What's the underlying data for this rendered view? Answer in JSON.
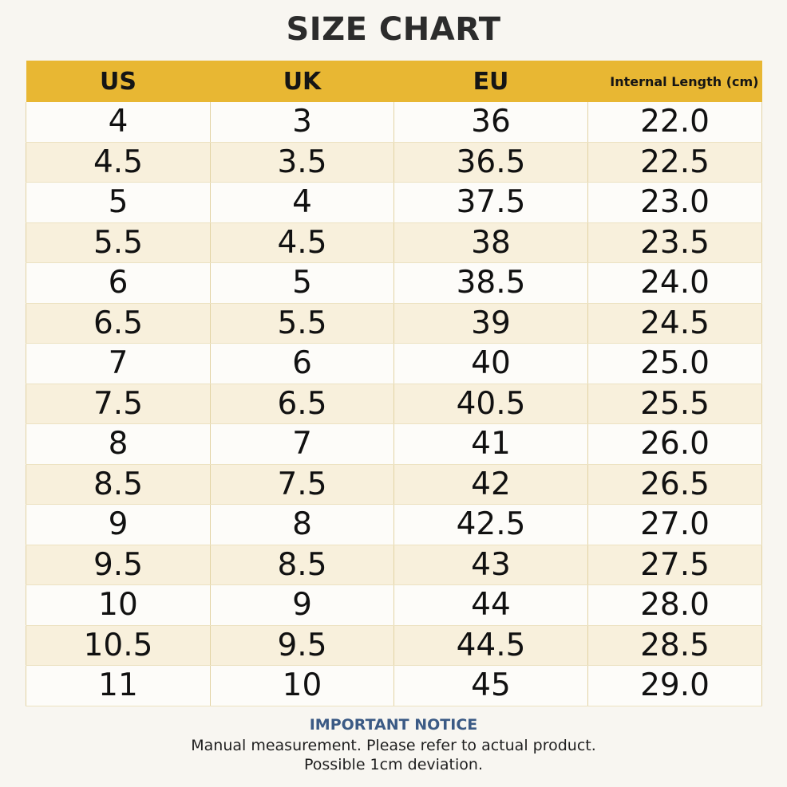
{
  "title": "SIZE CHART",
  "table": {
    "headers": [
      "US",
      "UK",
      "EU",
      "Internal Length (cm)"
    ],
    "rows": [
      [
        "4",
        "3",
        "36",
        "22.0"
      ],
      [
        "4.5",
        "3.5",
        "36.5",
        "22.5"
      ],
      [
        "5",
        "4",
        "37.5",
        "23.0"
      ],
      [
        "5.5",
        "4.5",
        "38",
        "23.5"
      ],
      [
        "6",
        "5",
        "38.5",
        "24.0"
      ],
      [
        "6.5",
        "5.5",
        "39",
        "24.5"
      ],
      [
        "7",
        "6",
        "40",
        "25.0"
      ],
      [
        "7.5",
        "6.5",
        "40.5",
        "25.5"
      ],
      [
        "8",
        "7",
        "41",
        "26.0"
      ],
      [
        "8.5",
        "7.5",
        "42",
        "26.5"
      ],
      [
        "9",
        "8",
        "42.5",
        "27.0"
      ],
      [
        "9.5",
        "8.5",
        "43",
        "27.5"
      ],
      [
        "10",
        "9",
        "44",
        "28.0"
      ],
      [
        "10.5",
        "9.5",
        "44.5",
        "28.5"
      ],
      [
        "11",
        "10",
        "45",
        "29.0"
      ]
    ]
  },
  "notice": {
    "heading": "IMPORTANT NOTICE",
    "line1": "Manual measurement. Please refer to actual product.",
    "line2": "Possible 1cm deviation."
  },
  "colors": {
    "header_bg": "#e8b733",
    "row_alt_bg": "#f8f0dc",
    "notice_heading": "#3b5a85"
  }
}
